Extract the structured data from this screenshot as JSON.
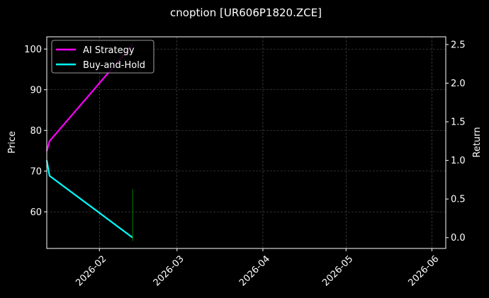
{
  "chart_data": {
    "type": "line",
    "title": "cnoption [UR606P1820.ZCE]",
    "ylabel": "Price",
    "y2label": "Return",
    "x_ticks": [
      "2026-02",
      "2026-03",
      "2026-04",
      "2026-05",
      "2026-06"
    ],
    "x_range": [
      "2026-01-13",
      "2026-06-06"
    ],
    "ylim": [
      51,
      103
    ],
    "y_ticks": [
      60,
      70,
      80,
      90,
      100
    ],
    "y2lim": [
      -0.14,
      2.6
    ],
    "y2_ticks": [
      0.0,
      0.5,
      1.0,
      1.5,
      2.0,
      2.5
    ],
    "legend_position": "upper-left",
    "grid": true,
    "series": [
      {
        "name": "AI Strategy",
        "axis": "right",
        "color": "#ff00ff",
        "x": [
          "2026-01-13",
          "2026-01-14",
          "2026-02-13"
        ],
        "y": [
          1.12,
          1.25,
          2.5
        ]
      },
      {
        "name": "Buy-and-Hold",
        "axis": "right",
        "color": "#00ffff",
        "x": [
          "2026-01-13",
          "2026-01-14",
          "2026-02-13"
        ],
        "y": [
          1.0,
          0.8,
          0.0
        ]
      },
      {
        "name": "",
        "axis": "left",
        "color": "#008000",
        "style": "vertical-segment",
        "x": [
          "2026-02-13",
          "2026-02-13"
        ],
        "y": [
          52.8,
          65.5
        ]
      }
    ]
  },
  "colors": {
    "background": "#000000",
    "axes": "#ffffff",
    "grid": "#555555"
  }
}
